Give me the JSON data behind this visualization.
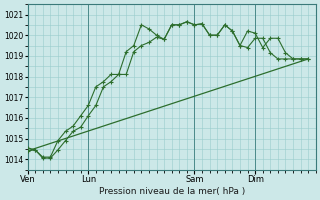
{
  "bg_color": "#cce8e8",
  "grid_color": "#99cccc",
  "line_color": "#2d6e2d",
  "xlabel": "Pression niveau de la mer( hPa )",
  "ylim": [
    1013.5,
    1021.5
  ],
  "yticks": [
    1014,
    1015,
    1016,
    1017,
    1018,
    1019,
    1020,
    1021
  ],
  "xtick_labels": [
    "Ven",
    "Lun",
    "Sam",
    "Dim"
  ],
  "xtick_positions": [
    0,
    8,
    22,
    30
  ],
  "vline_positions": [
    0,
    8,
    22,
    30
  ],
  "xlim": [
    0,
    38
  ],
  "series1_y": [
    1014.4,
    1014.45,
    1014.1,
    1014.1,
    1014.9,
    1015.35,
    1015.6,
    1016.1,
    1016.6,
    1017.5,
    1017.75,
    1018.1,
    1018.1,
    1019.2,
    1019.5,
    1020.5,
    1020.3,
    1020.0,
    1019.8,
    1020.5,
    1020.5,
    1020.65,
    1020.5,
    1020.55,
    1020.0,
    1020.0,
    1020.5,
    1020.2,
    1019.5,
    1020.2,
    1020.1,
    1019.4,
    1019.85,
    1019.85,
    1019.15,
    1018.85,
    1018.85,
    1018.85
  ],
  "series2_y": [
    1014.55,
    1014.45,
    1014.05,
    1014.05,
    1014.45,
    1014.9,
    1015.35,
    1015.55,
    1016.1,
    1016.6,
    1017.5,
    1017.75,
    1018.1,
    1018.1,
    1019.2,
    1019.5,
    1019.65,
    1019.9,
    1019.8,
    1020.5,
    1020.5,
    1020.65,
    1020.5,
    1020.55,
    1020.0,
    1020.0,
    1020.5,
    1020.2,
    1019.5,
    1019.4,
    1019.85,
    1019.85,
    1019.15,
    1018.85,
    1018.85,
    1018.85,
    1018.85,
    1018.85
  ],
  "series3_y": [
    1014.4,
    1018.85
  ],
  "n_points": 38
}
